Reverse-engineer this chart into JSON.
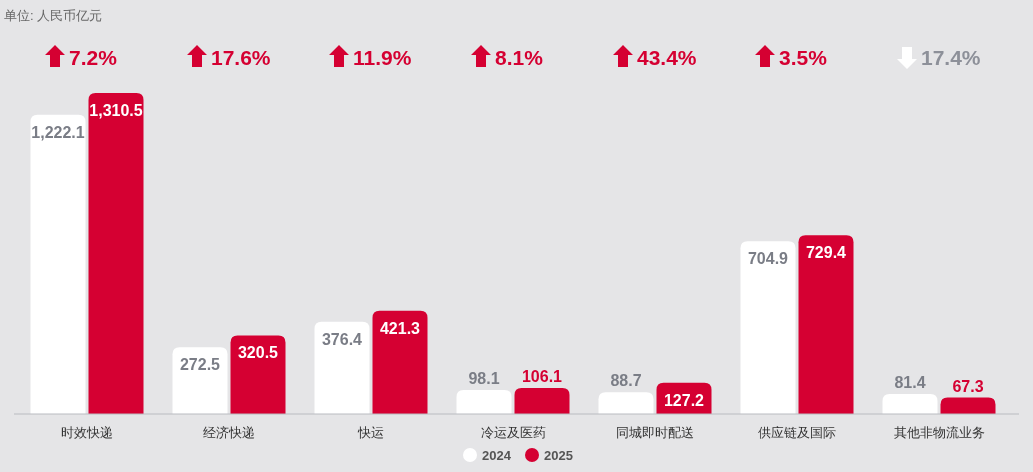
{
  "chart_data": {
    "type": "bar",
    "categories": [
      "时效快递",
      "经济快递",
      "快运",
      "冷运及医药",
      "同城即时配送",
      "供应链及国际",
      "其他非物流业务"
    ],
    "series": [
      {
        "name": "2024",
        "color": "#ffffff",
        "values": [
          1222.1,
          272.5,
          376.4,
          98.1,
          88.7,
          704.9,
          81.4
        ],
        "value_labels": [
          "1,222.1",
          "272.5",
          "376.4",
          "98.1",
          "88.7",
          "704.9",
          "81.4"
        ]
      },
      {
        "name": "2025",
        "color": "#d50032",
        "values": [
          1310.5,
          320.5,
          421.3,
          106.1,
          127.2,
          729.4,
          67.3
        ],
        "value_labels": [
          "1,310.5",
          "320.5",
          "421.3",
          "106.1",
          "127.2",
          "729.4",
          "67.3"
        ]
      }
    ],
    "legend": "bottom",
    "annotations": [
      "7.2%",
      "17.6%",
      "11.9%",
      "8.1%",
      "43.4%",
      "3.5%",
      "17.4%",
      "单位: 人民币亿元"
    ]
  }
}
